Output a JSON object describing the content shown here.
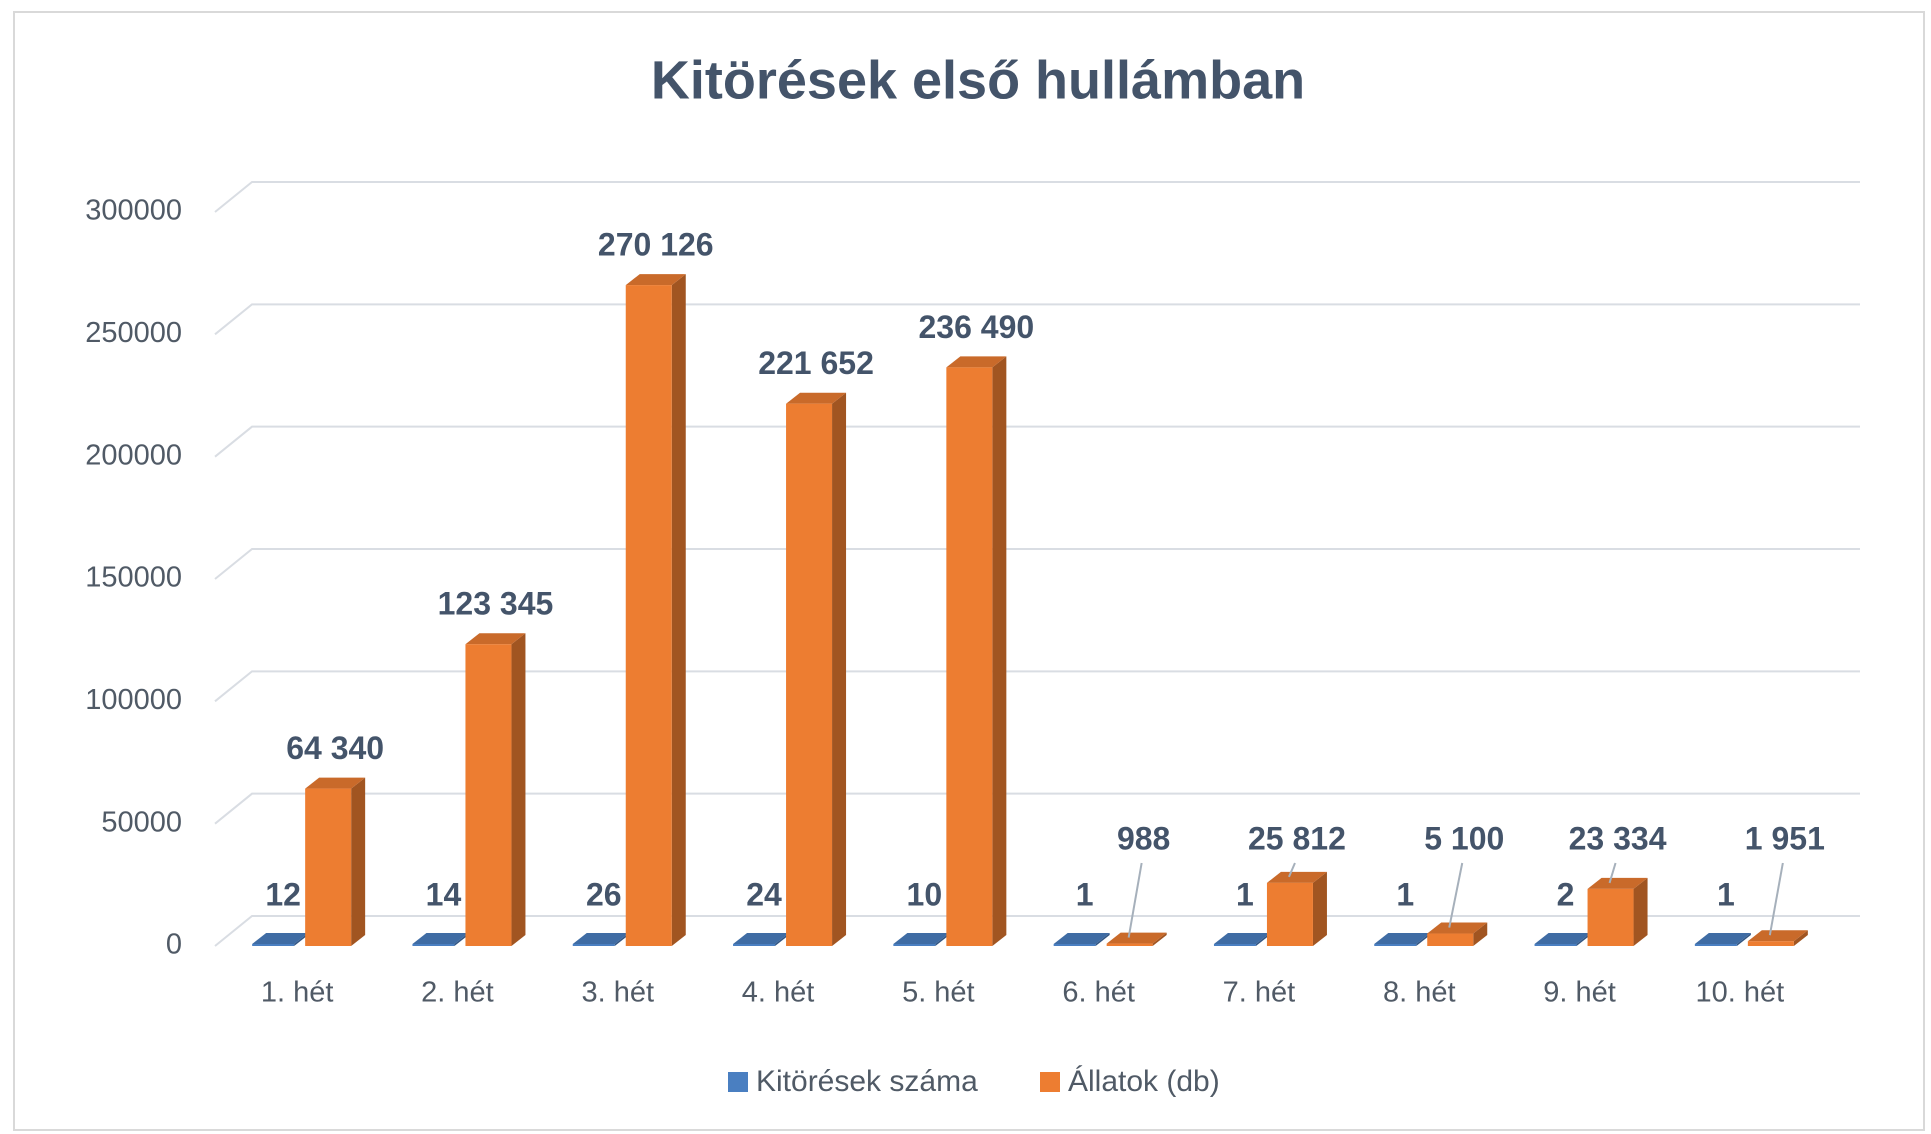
{
  "chart_data": {
    "type": "bar3d",
    "title": "Kitörések első hullámban",
    "categories": [
      "1. hét",
      "2. hét",
      "3. hét",
      "4. hét",
      "5. hét",
      "6. hét",
      "7. hét",
      "8. hét",
      "9. hét",
      "10. hét"
    ],
    "series": [
      {
        "name": "Kitörések száma",
        "color": "#4a7fc1",
        "values": [
          12,
          14,
          26,
          24,
          10,
          1,
          1,
          1,
          2,
          1
        ]
      },
      {
        "name": "Állatok (db)",
        "color": "#ed7d31",
        "values": [
          64340,
          123345,
          270126,
          221652,
          236490,
          988,
          25812,
          5100,
          23334,
          1951
        ],
        "value_labels": [
          "64 340",
          "123 345",
          "270 126",
          "221 652",
          "236 490",
          "988",
          "25 812",
          "5 100",
          "23 334",
          "1 951"
        ]
      }
    ],
    "ylim": [
      0,
      300000
    ],
    "yticks": [
      0,
      50000,
      100000,
      150000,
      200000,
      250000,
      300000
    ],
    "grid": true,
    "legend": "bottom"
  }
}
